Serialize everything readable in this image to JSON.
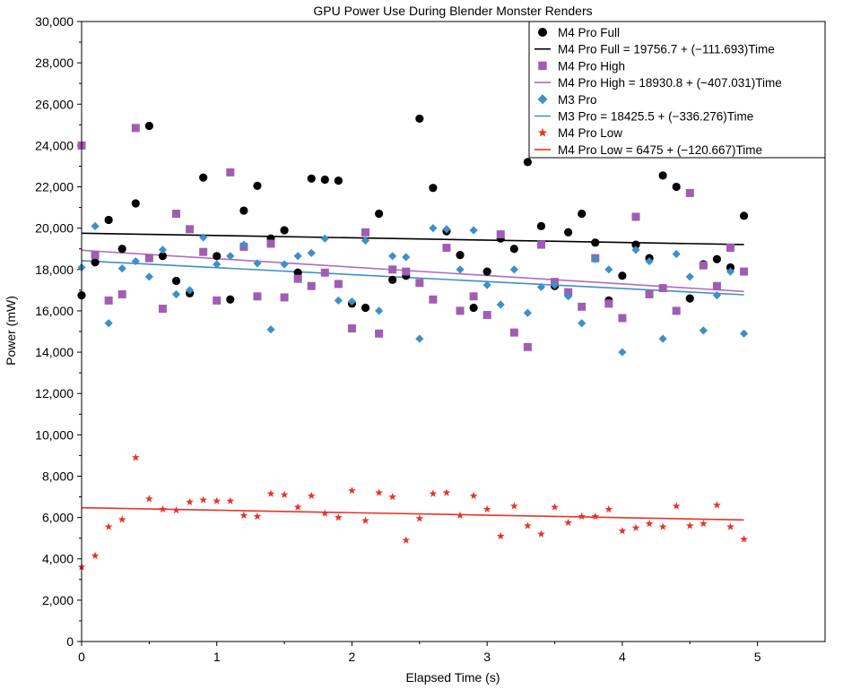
{
  "chart_data": {
    "type": "scatter",
    "title": "GPU Power Use During Blender Monster Renders",
    "xlabel": "Elapsed Time (s)",
    "ylabel": "Power (mW)",
    "xlim": [
      0,
      5.5
    ],
    "ylim": [
      0,
      30000
    ],
    "xticks": [
      0,
      1,
      2,
      3,
      4,
      5
    ],
    "xtick_labels": [
      "0",
      "1",
      "2",
      "3",
      "4",
      "5"
    ],
    "yticks": [
      0,
      2000,
      4000,
      6000,
      8000,
      10000,
      12000,
      14000,
      16000,
      18000,
      20000,
      22000,
      24000,
      26000,
      28000,
      30000
    ],
    "ytick_labels": [
      "0",
      "2,000",
      "4,000",
      "6,000",
      "8,000",
      "10,000",
      "12,000",
      "14,000",
      "16,000",
      "18,000",
      "20,000",
      "22,000",
      "24,000",
      "26,000",
      "28,000",
      "30,000"
    ],
    "grid": false,
    "legend_position": "top-right",
    "x": [
      0,
      0.1,
      0.2,
      0.3,
      0.4,
      0.5,
      0.6,
      0.7,
      0.8,
      0.9,
      1.0,
      1.1,
      1.2,
      1.3,
      1.4,
      1.5,
      1.6,
      1.7,
      1.8,
      1.9,
      2.0,
      2.1,
      2.2,
      2.3,
      2.4,
      2.5,
      2.6,
      2.7,
      2.8,
      2.9,
      3.0,
      3.1,
      3.2,
      3.3,
      3.4,
      3.5,
      3.6,
      3.7,
      3.8,
      3.9,
      4.0,
      4.1,
      4.2,
      4.3,
      4.4,
      4.5,
      4.6,
      4.7,
      4.8,
      4.9
    ],
    "series": [
      {
        "name": "M4 Pro Full",
        "marker": "circle",
        "color": "#000000",
        "values": [
          16750,
          18350,
          20400,
          19000,
          21200,
          24950,
          18650,
          17450,
          16850,
          22450,
          18650,
          16550,
          20850,
          22050,
          19500,
          19900,
          17850,
          22400,
          22350,
          22300,
          16350,
          16150,
          20700,
          17500,
          17700,
          25300,
          21950,
          19850,
          18700,
          16150,
          17900,
          19500,
          19000,
          23200,
          20100,
          17200,
          19800,
          20700,
          19300,
          16500,
          17700,
          19200,
          18550,
          22550,
          22000,
          16600,
          18250,
          18500,
          18100,
          20600
        ]
      },
      {
        "name": "M4 Pro High",
        "marker": "square",
        "color": "#a05db3",
        "values": [
          24000,
          18700,
          16500,
          16800,
          24850,
          18550,
          16100,
          20700,
          19950,
          18850,
          16500,
          22700,
          19100,
          16700,
          19250,
          16650,
          17550,
          17200,
          17850,
          17300,
          15150,
          19800,
          14900,
          18000,
          17900,
          17350,
          16550,
          19050,
          16000,
          16700,
          15800,
          19700,
          14950,
          14250,
          19200,
          17400,
          16900,
          16200,
          18550,
          16350,
          15650,
          20550,
          16800,
          17100,
          16000,
          21700,
          18200,
          17200,
          19050,
          17900
        ]
      },
      {
        "name": "M3 Pro",
        "marker": "diamond",
        "color": "#3f8fc9",
        "values": [
          18100,
          20100,
          15400,
          18050,
          18400,
          17650,
          18950,
          16800,
          17000,
          19550,
          18250,
          18650,
          19200,
          18300,
          15100,
          18250,
          18650,
          18800,
          19500,
          16500,
          16450,
          19400,
          16000,
          18650,
          18600,
          14650,
          20000,
          19950,
          18000,
          19900,
          17250,
          16300,
          18000,
          15900,
          17150,
          17250,
          16700,
          15400,
          18500,
          18000,
          14000,
          18950,
          18400,
          14650,
          18750,
          17650,
          15050,
          16750,
          17900,
          14900
        ]
      },
      {
        "name": "M4 Pro Low",
        "marker": "star",
        "color": "#e8342a",
        "values": [
          3600,
          4150,
          5550,
          5900,
          8900,
          6900,
          6400,
          6350,
          6750,
          6850,
          6800,
          6800,
          6100,
          6050,
          7150,
          7100,
          6500,
          7050,
          6200,
          6000,
          7300,
          5850,
          7200,
          7000,
          4900,
          5950,
          7150,
          7200,
          6100,
          7050,
          6400,
          5100,
          6550,
          5600,
          5200,
          6500,
          5750,
          6050,
          6050,
          6400,
          5350,
          5500,
          5700,
          5550,
          6550,
          5600,
          5700,
          6600,
          5550,
          4950
        ]
      }
    ],
    "fit_lines": [
      {
        "name": "M4 Pro Full = 19756.7 + (−111.693)Time",
        "series": "M4 Pro Full",
        "intercept": 19756.7,
        "slope": -111.693,
        "color": "#000000",
        "x_range": [
          0,
          4.9
        ]
      },
      {
        "name": "M4 Pro High = 18930.8 + (−407.031)Time",
        "series": "M4 Pro High",
        "intercept": 18930.8,
        "slope": -407.031,
        "color": "#b06cc0",
        "x_range": [
          0,
          4.9
        ]
      },
      {
        "name": "M3 Pro = 18425.5 + (−336.276)Time",
        "series": "M3 Pro",
        "intercept": 18425.5,
        "slope": -336.276,
        "color": "#3f8fc9",
        "x_range": [
          0,
          4.9
        ]
      },
      {
        "name": "M4 Pro Low = 6475 + (−120.667)Time",
        "series": "M4 Pro Low",
        "intercept": 6475,
        "slope": -120.667,
        "color": "#e8342a",
        "x_range": [
          0,
          4.9
        ]
      }
    ]
  }
}
